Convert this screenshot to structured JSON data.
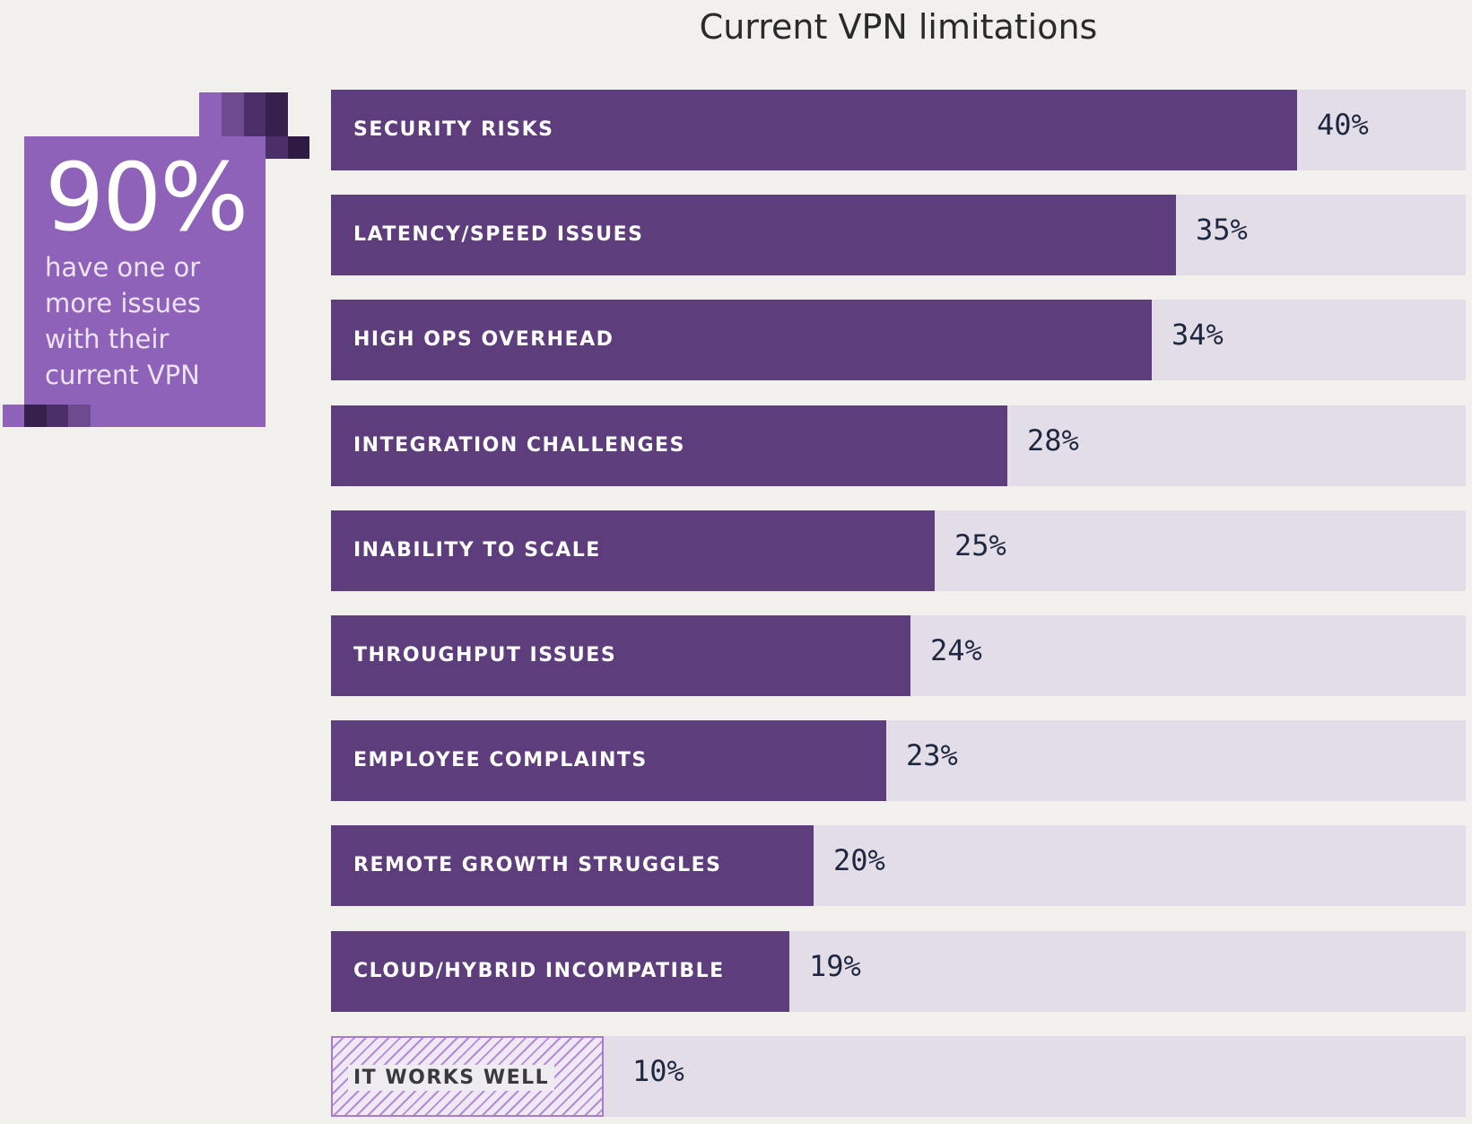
{
  "chart_data": {
    "type": "bar",
    "orientation": "horizontal",
    "title": "Current VPN limitations",
    "xlim": [
      0,
      47
    ],
    "categories": [
      "SECURITY RISKS",
      "LATENCY/SPEED ISSUES",
      "HIGH OPS OVERHEAD",
      "INTEGRATION CHALLENGES",
      "INABILITY TO SCALE",
      "THROUGHPUT ISSUES",
      "EMPLOYEE COMPLAINTS",
      "REMOTE GROWTH STRUGGLES",
      "CLOUD/HYBRID INCOMPATIBLE",
      "IT WORKS WELL"
    ],
    "values": [
      40,
      35,
      34,
      28,
      25,
      24,
      23,
      20,
      19,
      10
    ],
    "value_labels": [
      "40%",
      "35%",
      "34%",
      "28%",
      "25%",
      "24%",
      "23%",
      "20%",
      "19%",
      "10%"
    ],
    "highlight_last": true,
    "grid": false,
    "colors": {
      "bar": "#5e3d7c",
      "track": "#e3dde8",
      "highlight": "#a77cd0"
    }
  },
  "callout": {
    "value": "90%",
    "lines": [
      "have one or",
      "more issues",
      "with their",
      "current VPN"
    ],
    "color": "#8e62b8"
  }
}
